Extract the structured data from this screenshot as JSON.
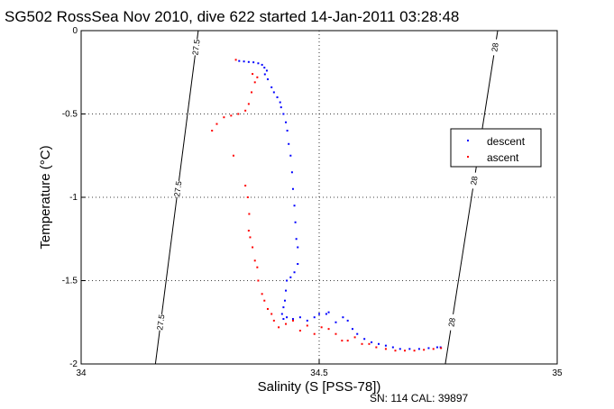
{
  "chart_data": {
    "type": "scatter",
    "title": "SG502 RossSea Nov 2010, dive 622 started 14-Jan-2011 03:28:48",
    "xlabel": "Salinity (S [PSS-78])",
    "ylabel": "Temperature (°C)",
    "footer": "SN: 114  CAL: 39897",
    "xlim": [
      34,
      35
    ],
    "ylim": [
      -2,
      0
    ],
    "x_ticks": [
      34,
      34.5,
      35
    ],
    "x_tick_labels": [
      "34",
      "34.5",
      "35"
    ],
    "y_ticks": [
      0,
      -0.5,
      -1,
      -1.5,
      -2
    ],
    "y_tick_labels": [
      "0",
      "-0.5",
      "-1",
      "-1.5",
      "-2"
    ],
    "grid": true,
    "legend_position": "right",
    "series": [
      {
        "name": "descent",
        "color": "#0000ff",
        "points": [
          [
            34.332,
            -0.182
          ],
          [
            34.342,
            -0.185
          ],
          [
            34.352,
            -0.188
          ],
          [
            34.362,
            -0.19
          ],
          [
            34.372,
            -0.196
          ],
          [
            34.38,
            -0.205
          ],
          [
            34.385,
            -0.222
          ],
          [
            34.39,
            -0.24
          ],
          [
            34.386,
            -0.262
          ],
          [
            34.392,
            -0.292
          ],
          [
            34.4,
            -0.34
          ],
          [
            34.405,
            -0.37
          ],
          [
            34.412,
            -0.4
          ],
          [
            34.418,
            -0.43
          ],
          [
            34.42,
            -0.46
          ],
          [
            34.425,
            -0.5
          ],
          [
            34.43,
            -0.55
          ],
          [
            34.433,
            -0.6
          ],
          [
            34.436,
            -0.68
          ],
          [
            34.44,
            -0.75
          ],
          [
            34.443,
            -0.85
          ],
          [
            34.445,
            -0.95
          ],
          [
            34.448,
            -1.05
          ],
          [
            34.45,
            -1.15
          ],
          [
            34.452,
            -1.25
          ],
          [
            34.455,
            -1.3
          ],
          [
            34.455,
            -1.4
          ],
          [
            34.448,
            -1.45
          ],
          [
            34.44,
            -1.48
          ],
          [
            34.432,
            -1.5
          ],
          [
            34.43,
            -1.56
          ],
          [
            34.428,
            -1.62
          ],
          [
            34.425,
            -1.66
          ],
          [
            34.422,
            -1.7
          ],
          [
            34.425,
            -1.73
          ],
          [
            34.432,
            -1.72
          ],
          [
            34.445,
            -1.73
          ],
          [
            34.46,
            -1.72
          ],
          [
            34.475,
            -1.74
          ],
          [
            34.49,
            -1.72
          ],
          [
            34.5,
            -1.7
          ],
          [
            34.515,
            -1.7
          ],
          [
            34.52,
            -1.69
          ],
          [
            34.535,
            -1.75
          ],
          [
            34.55,
            -1.72
          ],
          [
            34.56,
            -1.74
          ],
          [
            34.57,
            -1.79
          ],
          [
            34.58,
            -1.82
          ],
          [
            34.595,
            -1.85
          ],
          [
            34.61,
            -1.87
          ],
          [
            34.625,
            -1.88
          ],
          [
            34.64,
            -1.89
          ],
          [
            34.655,
            -1.9
          ],
          [
            34.67,
            -1.91
          ],
          [
            34.69,
            -1.91
          ],
          [
            34.71,
            -1.91
          ],
          [
            34.73,
            -1.905
          ],
          [
            34.748,
            -1.9
          ],
          [
            34.755,
            -1.9
          ]
        ]
      },
      {
        "name": "ascent",
        "color": "#ff0000",
        "points": [
          [
            34.325,
            -0.175
          ],
          [
            34.36,
            -0.26
          ],
          [
            34.37,
            -0.28
          ],
          [
            34.365,
            -0.31
          ],
          [
            34.358,
            -0.37
          ],
          [
            34.352,
            -0.44
          ],
          [
            34.345,
            -0.48
          ],
          [
            34.33,
            -0.5
          ],
          [
            34.315,
            -0.51
          ],
          [
            34.3,
            -0.52
          ],
          [
            34.285,
            -0.56
          ],
          [
            34.275,
            -0.6
          ],
          [
            34.32,
            -0.75
          ],
          [
            34.345,
            -0.93
          ],
          [
            34.35,
            -1.0
          ],
          [
            34.353,
            -1.1
          ],
          [
            34.352,
            -1.2
          ],
          [
            34.355,
            -1.24
          ],
          [
            34.36,
            -1.3
          ],
          [
            34.365,
            -1.38
          ],
          [
            34.37,
            -1.42
          ],
          [
            34.372,
            -1.5
          ],
          [
            34.38,
            -1.58
          ],
          [
            34.385,
            -1.62
          ],
          [
            34.392,
            -1.67
          ],
          [
            34.4,
            -1.7
          ],
          [
            34.405,
            -1.74
          ],
          [
            34.415,
            -1.78
          ],
          [
            34.43,
            -1.76
          ],
          [
            34.445,
            -1.74
          ],
          [
            34.46,
            -1.8
          ],
          [
            34.475,
            -1.77
          ],
          [
            34.49,
            -1.82
          ],
          [
            34.505,
            -1.78
          ],
          [
            34.52,
            -1.79
          ],
          [
            34.535,
            -1.82
          ],
          [
            34.548,
            -1.86
          ],
          [
            34.56,
            -1.86
          ],
          [
            34.575,
            -1.84
          ],
          [
            34.59,
            -1.88
          ],
          [
            34.605,
            -1.88
          ],
          [
            34.62,
            -1.9
          ],
          [
            34.64,
            -1.91
          ],
          [
            34.66,
            -1.92
          ],
          [
            34.68,
            -1.92
          ],
          [
            34.7,
            -1.92
          ],
          [
            34.72,
            -1.915
          ],
          [
            34.74,
            -1.91
          ],
          [
            34.756,
            -1.905
          ]
        ]
      }
    ],
    "isopycnals": [
      {
        "label": "27.5",
        "from": [
          34.156,
          -2
        ],
        "to": [
          34.246,
          0
        ],
        "label_positions": [
          -0.1,
          -0.95,
          -1.75
        ]
      },
      {
        "label": "28",
        "from": [
          34.765,
          -2
        ],
        "to": [
          34.875,
          0
        ],
        "label_positions": [
          -0.1,
          -0.9,
          -1.75
        ]
      }
    ]
  }
}
